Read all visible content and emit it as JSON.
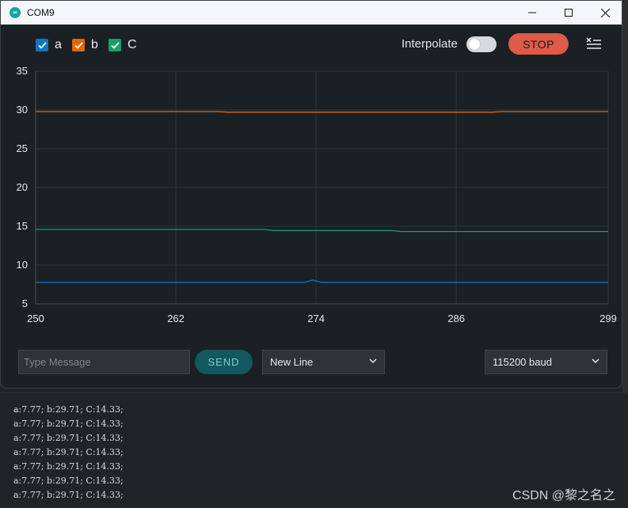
{
  "window": {
    "title": "COM9"
  },
  "legend": [
    {
      "label": "a",
      "color": "#0a78c2",
      "checked": true
    },
    {
      "label": "b",
      "color": "#e0680c",
      "checked": true
    },
    {
      "label": "C",
      "color": "#1c9e6a",
      "checked": true
    }
  ],
  "toolbar": {
    "interpolate_label": "Interpolate",
    "interpolate_on": false,
    "stop_label": "STOP"
  },
  "chart_data": {
    "type": "line",
    "xlim": [
      250,
      299
    ],
    "ylim": [
      5,
      35
    ],
    "x_ticks": [
      "250",
      "262",
      "274",
      "286",
      "299"
    ],
    "y_ticks": [
      "35",
      "30",
      "25",
      "20",
      "15",
      "10",
      "5"
    ],
    "grid": true,
    "series": [
      {
        "name": "a",
        "color": "#0a78c2",
        "x": [
          250,
          273,
          273.7,
          274.4,
          275.2,
          299
        ],
        "y": [
          7.77,
          7.77,
          8.07,
          7.8,
          7.77,
          7.77
        ]
      },
      {
        "name": "b",
        "color": "#e0680c",
        "x": [
          250,
          265.5,
          266.5,
          289,
          290,
          299
        ],
        "y": [
          29.8,
          29.8,
          29.71,
          29.71,
          29.8,
          29.8
        ]
      },
      {
        "name": "C",
        "color": "#1c9e6a",
        "x": [
          250,
          269.5,
          270.3,
          280.5,
          281.3,
          299
        ],
        "y": [
          14.6,
          14.6,
          14.45,
          14.45,
          14.33,
          14.33
        ]
      }
    ]
  },
  "controls": {
    "message_placeholder": "Type Message",
    "send_label": "SEND",
    "line_ending": "New Line",
    "baud": "115200 baud"
  },
  "console": {
    "lines": [
      "a:7.77; b:29.71; C:14.33;",
      "a:7.77; b:29.71; C:14.33;",
      "a:7.77; b:29.71; C:14.33;",
      "a:7.77; b:29.71; C:14.33;",
      "a:7.77; b:29.71; C:14.33;",
      "a:7.77; b:29.71; C:14.33;",
      "a:7.77; b:29.71; C:14.33;"
    ]
  },
  "watermark": "CSDN @黎之名之"
}
